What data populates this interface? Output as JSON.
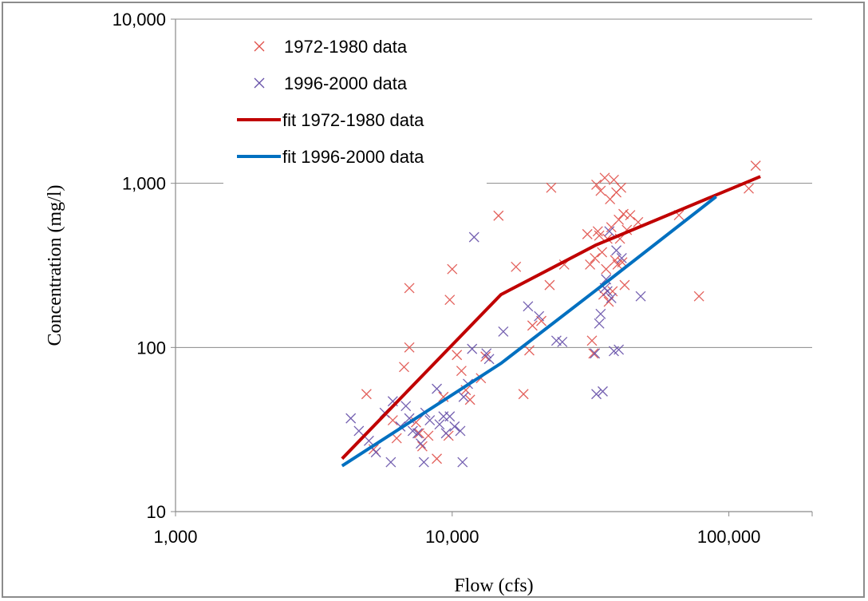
{
  "chart_data": {
    "type": "scatter",
    "title": "",
    "xlabel": "Flow (cfs)",
    "ylabel": "Concentration (mg/l)",
    "xscale": "log",
    "yscale": "log",
    "xlim": [
      1000,
      200000
    ],
    "ylim": [
      10,
      10000
    ],
    "x_ticks": [
      {
        "value": 1000,
        "label": "1,000"
      },
      {
        "value": 10000,
        "label": "10,000"
      },
      {
        "value": 100000,
        "label": "100,000"
      }
    ],
    "y_ticks": [
      {
        "value": 10,
        "label": "10"
      },
      {
        "value": 100,
        "label": "100"
      },
      {
        "value": 1000,
        "label": "1,000"
      },
      {
        "value": 10000,
        "label": "10,000"
      }
    ],
    "grid": "horizontal",
    "legend_position": "top-left",
    "series": [
      {
        "name": "1972-1980 data",
        "kind": "scatter",
        "marker": "x",
        "color": "#e0504a",
        "points": [
          [
            4900,
            52
          ],
          [
            5200,
            24
          ],
          [
            6100,
            36
          ],
          [
            6300,
            28
          ],
          [
            6700,
            76
          ],
          [
            7000,
            100
          ],
          [
            7000,
            230
          ],
          [
            7400,
            35
          ],
          [
            7600,
            30
          ],
          [
            7800,
            25
          ],
          [
            8200,
            29
          ],
          [
            8800,
            21
          ],
          [
            9300,
            50
          ],
          [
            9700,
            29
          ],
          [
            9800,
            195
          ],
          [
            10000,
            300
          ],
          [
            10400,
            90
          ],
          [
            10800,
            72
          ],
          [
            11200,
            55
          ],
          [
            11600,
            48
          ],
          [
            12700,
            65
          ],
          [
            13200,
            88
          ],
          [
            14700,
            635
          ],
          [
            17000,
            310
          ],
          [
            18100,
            52
          ],
          [
            19000,
            96
          ],
          [
            19500,
            136
          ],
          [
            21000,
            145
          ],
          [
            22500,
            240
          ],
          [
            22800,
            940
          ],
          [
            25400,
            320
          ],
          [
            30800,
            490
          ],
          [
            31500,
            320
          ],
          [
            32000,
            110
          ],
          [
            32400,
            92
          ],
          [
            32800,
            350
          ],
          [
            33200,
            980
          ],
          [
            33600,
            510
          ],
          [
            34000,
            480
          ],
          [
            34400,
            900
          ],
          [
            34800,
            380
          ],
          [
            35200,
            210
          ],
          [
            35600,
            1080
          ],
          [
            36000,
            300
          ],
          [
            36400,
            460
          ],
          [
            36800,
            190
          ],
          [
            37200,
            800
          ],
          [
            37600,
            540
          ],
          [
            38000,
            220
          ],
          [
            38400,
            1050
          ],
          [
            38800,
            340
          ],
          [
            39200,
            880
          ],
          [
            39600,
            320
          ],
          [
            40000,
            600
          ],
          [
            40400,
            460
          ],
          [
            40800,
            940
          ],
          [
            41200,
            330
          ],
          [
            41600,
            650
          ],
          [
            42000,
            240
          ],
          [
            42800,
            520
          ],
          [
            44000,
            640
          ],
          [
            47000,
            580
          ],
          [
            66000,
            640
          ],
          [
            78000,
            205
          ],
          [
            118000,
            930
          ],
          [
            125000,
            1280
          ]
        ]
      },
      {
        "name": "1996-2000 data",
        "kind": "scatter",
        "marker": "x",
        "color": "#6650a8",
        "points": [
          [
            4300,
            37
          ],
          [
            4600,
            31
          ],
          [
            5000,
            27
          ],
          [
            5300,
            23
          ],
          [
            5700,
            40
          ],
          [
            6000,
            20
          ],
          [
            6100,
            47
          ],
          [
            6500,
            33
          ],
          [
            6800,
            44
          ],
          [
            7000,
            37
          ],
          [
            7200,
            31
          ],
          [
            7500,
            30
          ],
          [
            7700,
            26
          ],
          [
            7900,
            20
          ],
          [
            8000,
            40
          ],
          [
            8300,
            36
          ],
          [
            8800,
            56
          ],
          [
            9000,
            34
          ],
          [
            9300,
            38
          ],
          [
            9500,
            30
          ],
          [
            9800,
            38
          ],
          [
            10200,
            33
          ],
          [
            10700,
            31
          ],
          [
            10900,
            20
          ],
          [
            11000,
            50
          ],
          [
            11400,
            60
          ],
          [
            11800,
            98
          ],
          [
            12000,
            470
          ],
          [
            13300,
            92
          ],
          [
            13600,
            85
          ],
          [
            15300,
            125
          ],
          [
            18800,
            178
          ],
          [
            20600,
            155
          ],
          [
            23800,
            110
          ],
          [
            25000,
            108
          ],
          [
            32800,
            92
          ],
          [
            33200,
            52
          ],
          [
            34000,
            140
          ],
          [
            34400,
            160
          ],
          [
            35000,
            54
          ],
          [
            35600,
            230
          ],
          [
            36000,
            260
          ],
          [
            36400,
            220
          ],
          [
            37000,
            510
          ],
          [
            37600,
            200
          ],
          [
            38400,
            95
          ],
          [
            39200,
            390
          ],
          [
            40000,
            97
          ],
          [
            41000,
            350
          ],
          [
            48000,
            205
          ]
        ]
      },
      {
        "name": "fit 1972-1980 data",
        "kind": "line",
        "color": "#c00000",
        "points": [
          [
            4000,
            21
          ],
          [
            15000,
            210
          ],
          [
            33000,
            420
          ],
          [
            130000,
            1100
          ]
        ]
      },
      {
        "name": "fit 1996-2000 data",
        "kind": "line",
        "color": "#0070c0",
        "points": [
          [
            4000,
            19
          ],
          [
            15000,
            80
          ],
          [
            35000,
            240
          ],
          [
            90000,
            830
          ]
        ]
      }
    ]
  }
}
